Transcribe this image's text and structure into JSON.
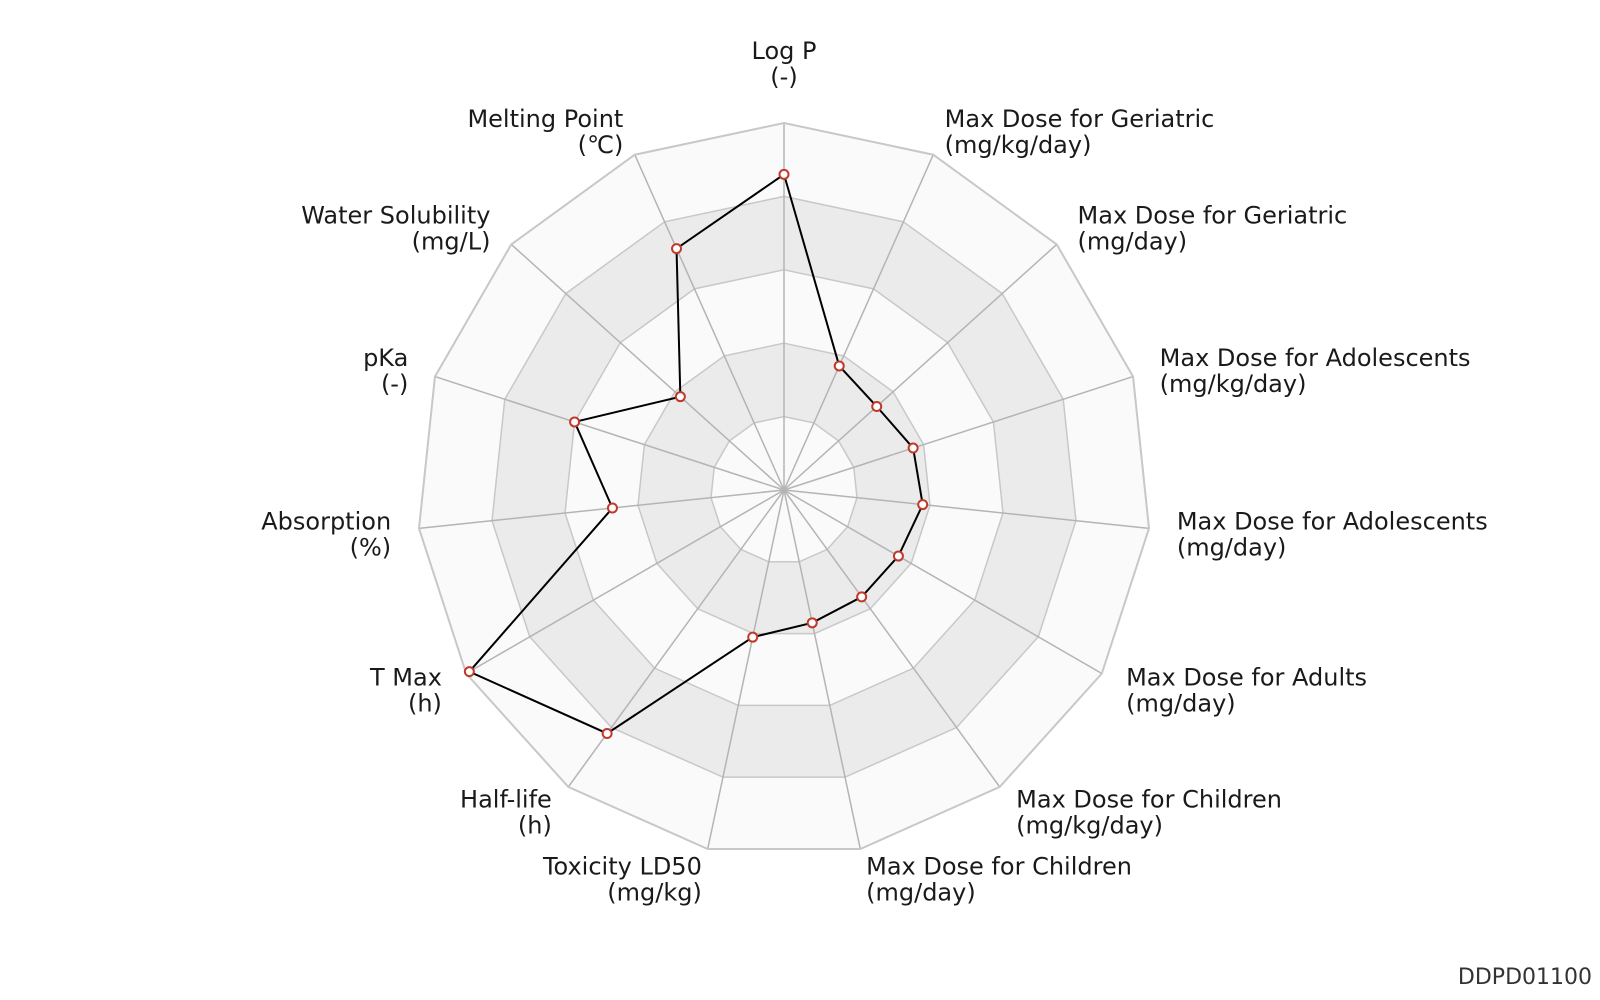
{
  "chart_data": {
    "type": "radar",
    "scale": [
      0,
      10
    ],
    "rings": 5,
    "grid": true,
    "axes": [
      {
        "name": "Log P",
        "unit": "(-)",
        "value": 8.6
      },
      {
        "name": "Max Dose for Geriatric",
        "unit": "(mg/kg/day)",
        "value": 3.7
      },
      {
        "name": "Max Dose for Geriatric",
        "unit": "(mg/day)",
        "value": 3.4
      },
      {
        "name": "Max Dose for Adolescents",
        "unit": "(mg/kg/day)",
        "value": 3.7
      },
      {
        "name": "Max Dose for Adolescents",
        "unit": "(mg/day)",
        "value": 3.8
      },
      {
        "name": "Max Dose for Adults",
        "unit": "(mg/day)",
        "value": 3.6
      },
      {
        "name": "Max Dose for Children",
        "unit": "(mg/kg/day)",
        "value": 3.6
      },
      {
        "name": "Max Dose for Children",
        "unit": "(mg/day)",
        "value": 3.7
      },
      {
        "name": "Toxicity LD50",
        "unit": "(mg/kg)",
        "value": 4.1
      },
      {
        "name": "Half-life",
        "unit": "(h)",
        "value": 8.2
      },
      {
        "name": "T Max",
        "unit": "(h)",
        "value": 9.9
      },
      {
        "name": "Absorption",
        "unit": "(%)",
        "value": 4.7
      },
      {
        "name": "pKa",
        "unit": "(-)",
        "value": 6.0
      },
      {
        "name": "Water Solubility",
        "unit": "(mg/L)",
        "value": 3.8
      },
      {
        "name": "Melting Point",
        "unit": "(℃)",
        "value": 7.2
      }
    ],
    "colors": {
      "line": "#000000",
      "marker_edge": "#c0392b",
      "marker_fill": "#ffffff",
      "grid_line": "#c8c8c8",
      "band_light": "#fafafa",
      "band_dark": "#ebebeb"
    }
  },
  "footer": {
    "id": "DDPD01100"
  }
}
